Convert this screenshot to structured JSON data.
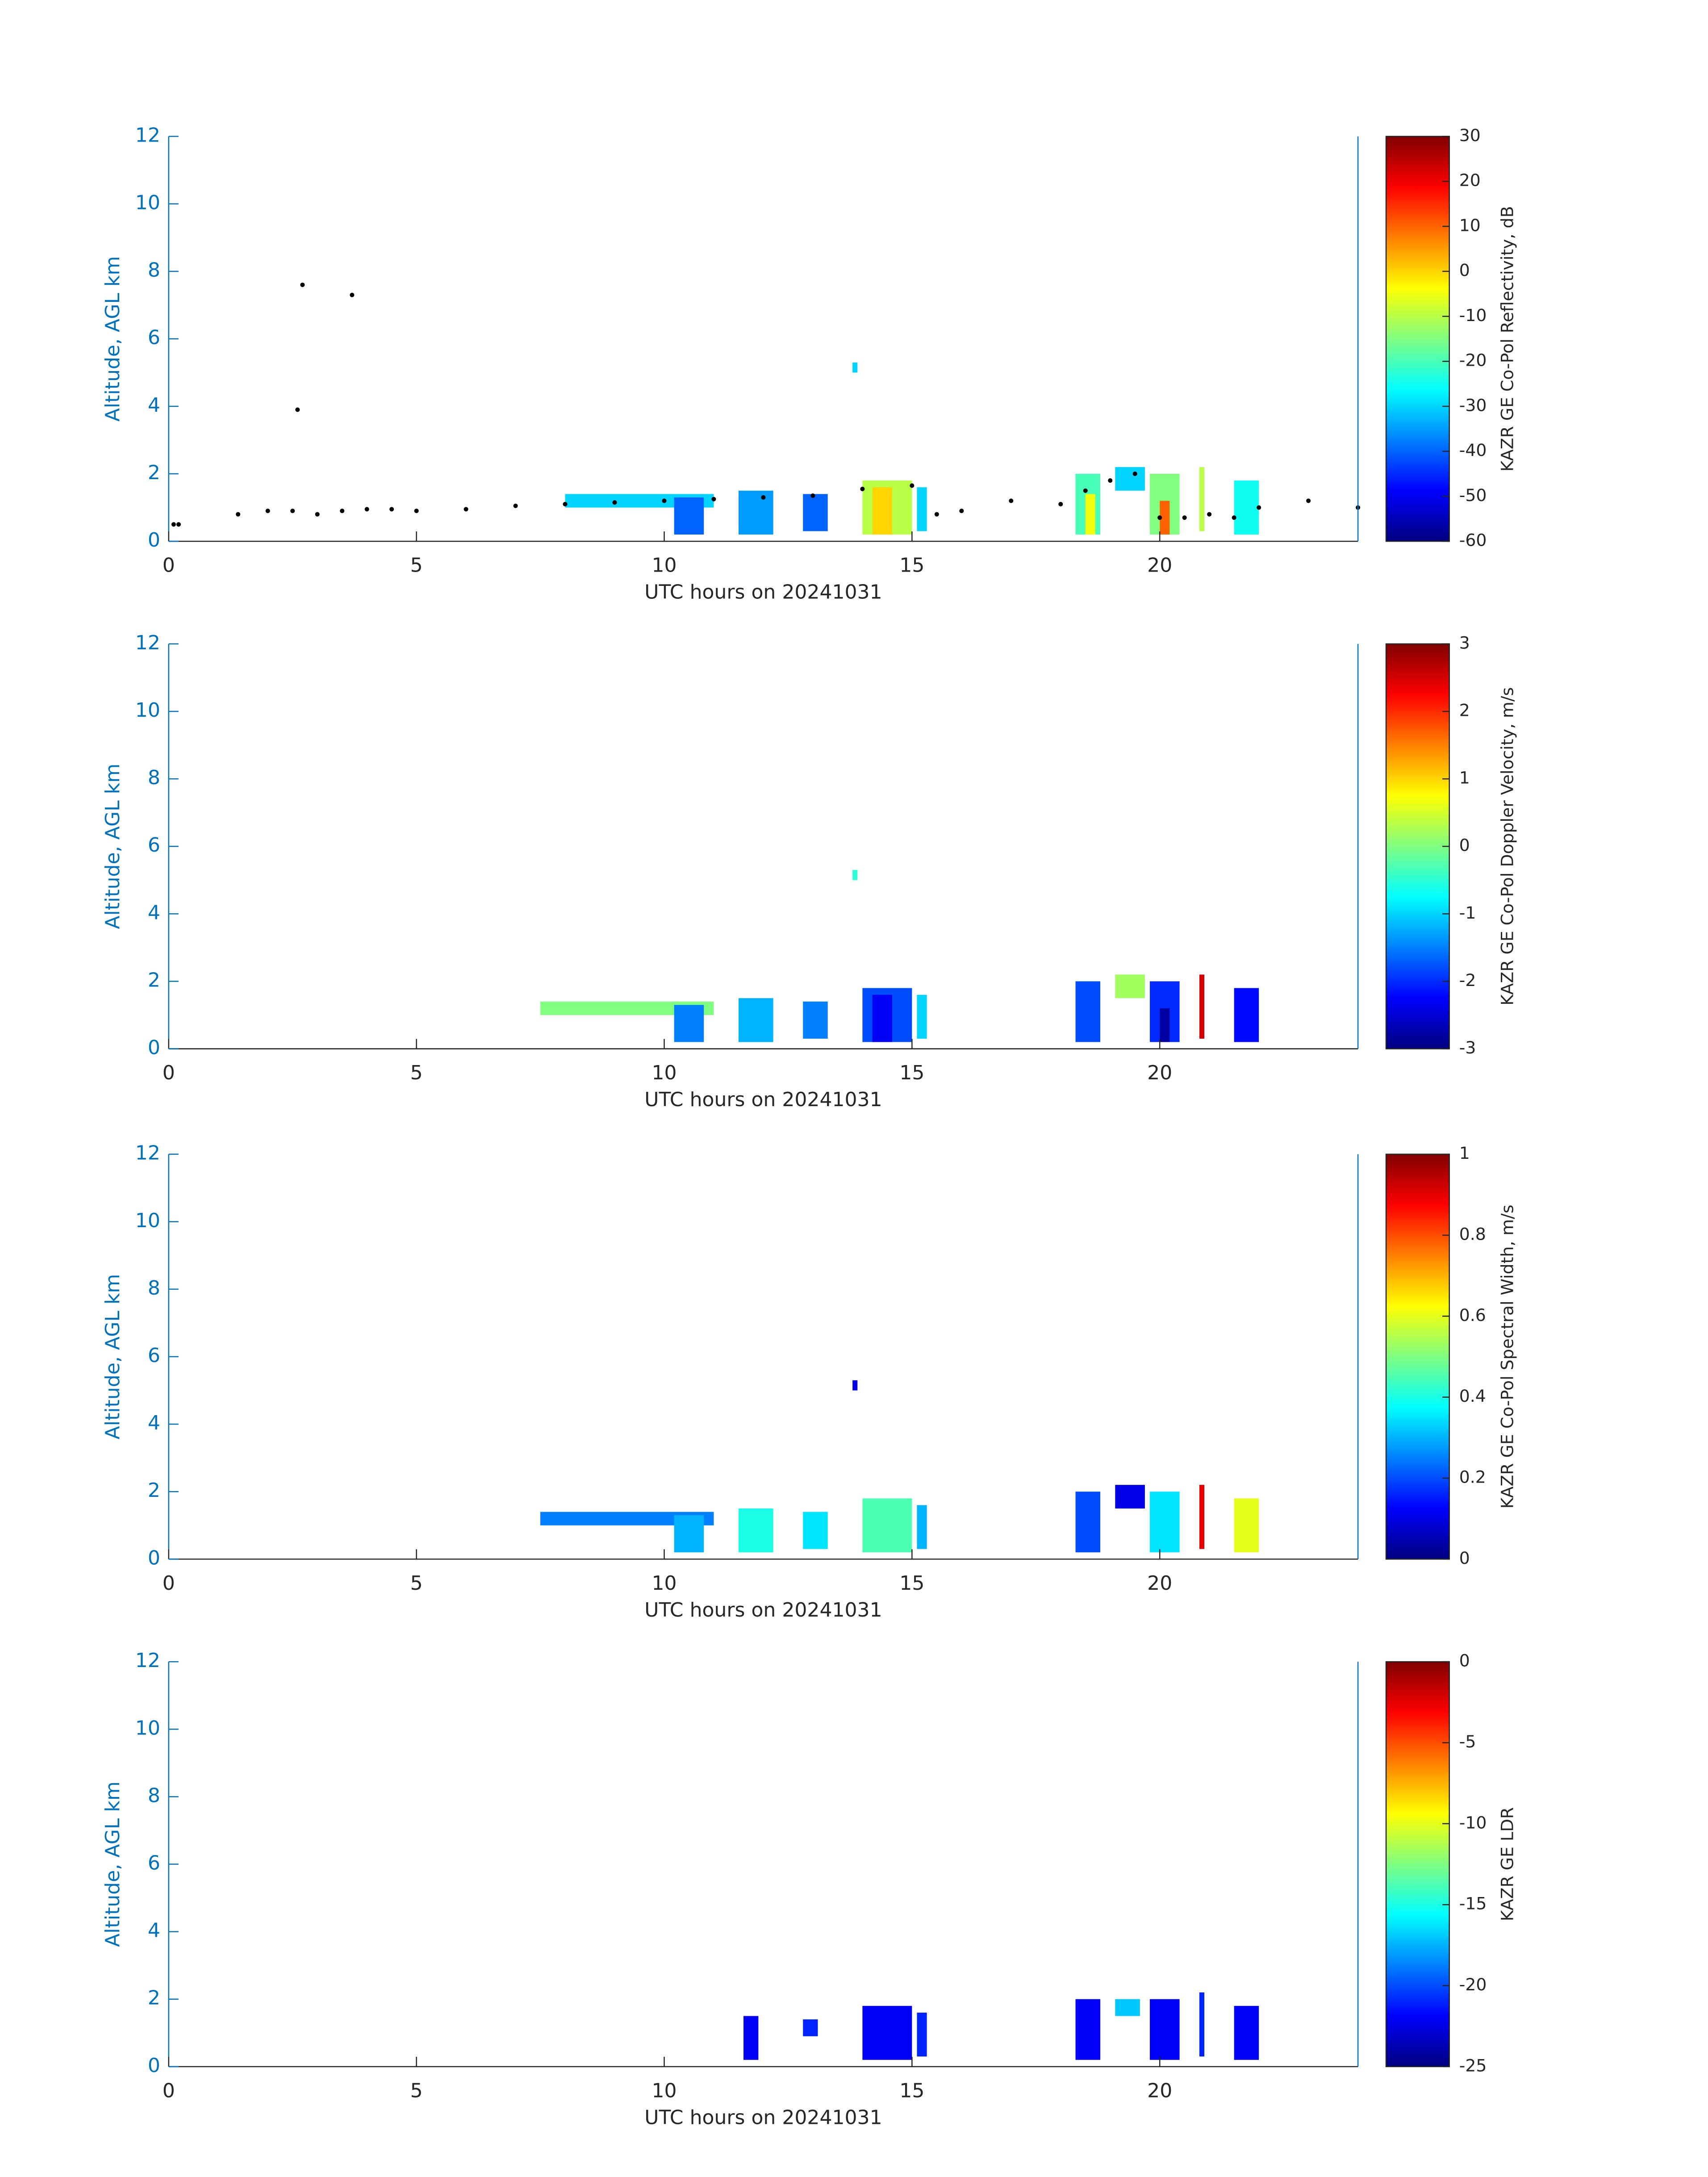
{
  "chart_data": [
    {
      "type": "heatmap",
      "xlabel": "UTC hours on 20241031",
      "ylabel": "Altitude, AGL km",
      "colorbar_label": "KAZR GE Co-Pol Reflectivity, dB",
      "colormap": "jet",
      "xlim": [
        0,
        24
      ],
      "xticks": [
        0,
        5,
        10,
        15,
        20
      ],
      "ylim": [
        0,
        12
      ],
      "yticks": [
        0,
        2,
        4,
        6,
        8,
        10,
        12
      ],
      "clim": [
        -60,
        30
      ],
      "cticks": [
        -60,
        -50,
        -40,
        -30,
        -20,
        -10,
        0,
        10,
        20,
        30
      ],
      "cells": [
        {
          "x": [
            8,
            11
          ],
          "y": [
            1.0,
            1.4
          ],
          "value": -30
        },
        {
          "x": [
            10.2,
            10.8
          ],
          "y": [
            0.2,
            1.3
          ],
          "value": -40
        },
        {
          "x": [
            11.5,
            12.2
          ],
          "y": [
            0.2,
            1.5
          ],
          "value": -35
        },
        {
          "x": [
            12.8,
            13.3
          ],
          "y": [
            0.3,
            1.4
          ],
          "value": -40
        },
        {
          "x": [
            14,
            15
          ],
          "y": [
            0.2,
            1.8
          ],
          "value": -10
        },
        {
          "x": [
            14.2,
            14.6
          ],
          "y": [
            0.2,
            1.6
          ],
          "value": 0
        },
        {
          "x": [
            15.1,
            15.3
          ],
          "y": [
            0.3,
            1.6
          ],
          "value": -30
        },
        {
          "x": [
            18.3,
            18.8
          ],
          "y": [
            0.2,
            2.0
          ],
          "value": -20
        },
        {
          "x": [
            18.5,
            18.7
          ],
          "y": [
            0.2,
            1.4
          ],
          "value": -5
        },
        {
          "x": [
            19.1,
            19.7
          ],
          "y": [
            1.5,
            2.2
          ],
          "value": -30
        },
        {
          "x": [
            19.8,
            20.4
          ],
          "y": [
            0.2,
            2.0
          ],
          "value": -15
        },
        {
          "x": [
            20,
            20.2
          ],
          "y": [
            0.2,
            1.2
          ],
          "value": 10
        },
        {
          "x": [
            20.8,
            20.9
          ],
          "y": [
            0.3,
            2.2
          ],
          "value": -10
        },
        {
          "x": [
            21.5,
            22
          ],
          "y": [
            0.2,
            1.8
          ],
          "value": -25
        },
        {
          "x": [
            13.8,
            13.9
          ],
          "y": [
            5.0,
            5.3
          ],
          "value": -30
        }
      ],
      "points": {
        "color": "#000000",
        "x": [
          0.1,
          0.2,
          1.4,
          2.0,
          2.5,
          3,
          3.5,
          4,
          4.5,
          5,
          6,
          7,
          8,
          9,
          10,
          11,
          12,
          13,
          14,
          15,
          15.5,
          16,
          17,
          18,
          18.5,
          19,
          19.5,
          20,
          20.5,
          21,
          21.5,
          22,
          23,
          24,
          2.7,
          3.7,
          2.6
        ],
        "y": [
          0.5,
          0.5,
          0.8,
          0.9,
          0.9,
          0.8,
          0.9,
          0.95,
          0.95,
          0.9,
          0.95,
          1.05,
          1.1,
          1.15,
          1.2,
          1.25,
          1.3,
          1.35,
          1.55,
          1.65,
          0.8,
          0.9,
          1.2,
          1.1,
          1.5,
          1.8,
          2.0,
          0.7,
          0.7,
          0.8,
          0.7,
          1.0,
          1.2,
          1.0,
          7.6,
          7.3,
          3.9
        ]
      }
    },
    {
      "type": "heatmap",
      "xlabel": "UTC hours on 20241031",
      "ylabel": "Altitude, AGL km",
      "colorbar_label": "KAZR GE Co-Pol Doppler Velocity, m/s",
      "colormap": "jet",
      "xlim": [
        0,
        24
      ],
      "xticks": [
        0,
        5,
        10,
        15,
        20
      ],
      "ylim": [
        0,
        12
      ],
      "yticks": [
        0,
        2,
        4,
        6,
        8,
        10,
        12
      ],
      "clim": [
        -3,
        3
      ],
      "cticks": [
        -3,
        -2,
        -1,
        0,
        1,
        2,
        3
      ],
      "cells": [
        {
          "x": [
            7.5,
            11
          ],
          "y": [
            1.0,
            1.4
          ],
          "value": 0
        },
        {
          "x": [
            10.2,
            10.8
          ],
          "y": [
            0.2,
            1.3
          ],
          "value": -1.5
        },
        {
          "x": [
            11.5,
            12.2
          ],
          "y": [
            0.2,
            1.5
          ],
          "value": -1.2
        },
        {
          "x": [
            12.8,
            13.3
          ],
          "y": [
            0.3,
            1.4
          ],
          "value": -1.5
        },
        {
          "x": [
            14,
            15
          ],
          "y": [
            0.2,
            1.8
          ],
          "value": -1.8
        },
        {
          "x": [
            14.2,
            14.6
          ],
          "y": [
            0.2,
            1.6
          ],
          "value": -2.3
        },
        {
          "x": [
            15.1,
            15.3
          ],
          "y": [
            0.3,
            1.6
          ],
          "value": -1
        },
        {
          "x": [
            18.3,
            18.8
          ],
          "y": [
            0.2,
            2.0
          ],
          "value": -1.8
        },
        {
          "x": [
            19.1,
            19.7
          ],
          "y": [
            1.5,
            2.2
          ],
          "value": 0.2
        },
        {
          "x": [
            19.8,
            20.4
          ],
          "y": [
            0.2,
            2.0
          ],
          "value": -2
        },
        {
          "x": [
            20,
            20.2
          ],
          "y": [
            0.2,
            1.2
          ],
          "value": -2.8
        },
        {
          "x": [
            20.8,
            20.9
          ],
          "y": [
            0.3,
            2.2
          ],
          "value": 2.5
        },
        {
          "x": [
            21.5,
            22
          ],
          "y": [
            0.2,
            1.8
          ],
          "value": -2.2
        },
        {
          "x": [
            13.8,
            13.9
          ],
          "y": [
            5.0,
            5.3
          ],
          "value": -0.5
        }
      ]
    },
    {
      "type": "heatmap",
      "xlabel": "UTC hours on 20241031",
      "ylabel": "Altitude, AGL km",
      "colorbar_label": "KAZR GE Co-Pol Spectral Width, m/s",
      "colormap": "jet",
      "xlim": [
        0,
        24
      ],
      "xticks": [
        0,
        5,
        10,
        15,
        20
      ],
      "ylim": [
        0,
        12
      ],
      "yticks": [
        0,
        2,
        4,
        6,
        8,
        10,
        12
      ],
      "clim": [
        0,
        1
      ],
      "cticks": [
        0,
        0.2,
        0.4,
        0.6,
        0.8,
        1
      ],
      "cells": [
        {
          "x": [
            7.5,
            11
          ],
          "y": [
            1.0,
            1.4
          ],
          "value": 0.25
        },
        {
          "x": [
            10.2,
            10.8
          ],
          "y": [
            0.2,
            1.3
          ],
          "value": 0.3
        },
        {
          "x": [
            11.5,
            12.2
          ],
          "y": [
            0.2,
            1.5
          ],
          "value": 0.4
        },
        {
          "x": [
            12.8,
            13.3
          ],
          "y": [
            0.3,
            1.4
          ],
          "value": 0.35
        },
        {
          "x": [
            14,
            15
          ],
          "y": [
            0.2,
            1.8
          ],
          "value": 0.45
        },
        {
          "x": [
            15.1,
            15.3
          ],
          "y": [
            0.3,
            1.6
          ],
          "value": 0.3
        },
        {
          "x": [
            18.3,
            18.8
          ],
          "y": [
            0.2,
            2.0
          ],
          "value": 0.2
        },
        {
          "x": [
            19.1,
            19.7
          ],
          "y": [
            1.5,
            2.2
          ],
          "value": 0.1
        },
        {
          "x": [
            19.8,
            20.4
          ],
          "y": [
            0.2,
            2.0
          ],
          "value": 0.35
        },
        {
          "x": [
            20.8,
            20.9
          ],
          "y": [
            0.3,
            2.2
          ],
          "value": 0.9
        },
        {
          "x": [
            21.5,
            22
          ],
          "y": [
            0.2,
            1.8
          ],
          "value": 0.6
        },
        {
          "x": [
            13.8,
            13.9
          ],
          "y": [
            5.0,
            5.3
          ],
          "value": 0.1
        }
      ]
    },
    {
      "type": "heatmap",
      "xlabel": "UTC hours on 20241031",
      "ylabel": "Altitude, AGL km",
      "colorbar_label": "KAZR GE LDR",
      "colormap": "jet",
      "xlim": [
        0,
        24
      ],
      "xticks": [
        0,
        5,
        10,
        15,
        20
      ],
      "ylim": [
        0,
        12
      ],
      "yticks": [
        0,
        2,
        4,
        6,
        8,
        10,
        12
      ],
      "clim": [
        -25,
        0
      ],
      "cticks": [
        -25,
        -20,
        -15,
        -10,
        -5,
        0
      ],
      "cells": [
        {
          "x": [
            11.6,
            11.9
          ],
          "y": [
            0.2,
            1.5
          ],
          "value": -22
        },
        {
          "x": [
            12.8,
            13.1
          ],
          "y": [
            0.9,
            1.4
          ],
          "value": -21
        },
        {
          "x": [
            14,
            15
          ],
          "y": [
            0.2,
            1.8
          ],
          "value": -22
        },
        {
          "x": [
            15.1,
            15.3
          ],
          "y": [
            0.3,
            1.6
          ],
          "value": -21
        },
        {
          "x": [
            18.3,
            18.8
          ],
          "y": [
            0.2,
            2.0
          ],
          "value": -22
        },
        {
          "x": [
            19.1,
            19.6
          ],
          "y": [
            1.5,
            2.0
          ],
          "value": -17
        },
        {
          "x": [
            19.8,
            20.4
          ],
          "y": [
            0.2,
            2.0
          ],
          "value": -22
        },
        {
          "x": [
            20.8,
            20.9
          ],
          "y": [
            0.3,
            2.2
          ],
          "value": -21
        },
        {
          "x": [
            21.5,
            22
          ],
          "y": [
            0.2,
            1.8
          ],
          "value": -22
        }
      ]
    }
  ]
}
